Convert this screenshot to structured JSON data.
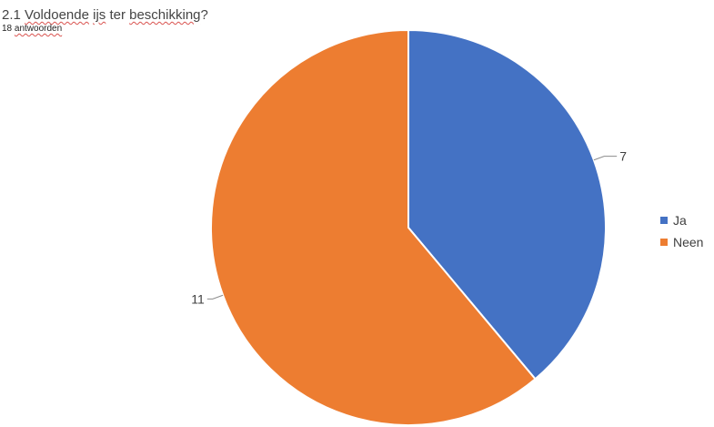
{
  "header": {
    "title_prefix": "2.1 ",
    "title_word1": "Voldoende",
    "title_space1": " ",
    "title_word2": "ijs",
    "title_middle": " ter ",
    "title_word3": "beschikking",
    "title_suffix": "?",
    "subtitle_count": "18 ",
    "subtitle_word": "antwoorden"
  },
  "chart_data": {
    "type": "pie",
    "title": "2.1 Voldoende ijs ter beschikking?",
    "subtitle": "18 antwoorden",
    "categories": [
      "Ja",
      "Neen"
    ],
    "values": [
      7,
      11
    ],
    "colors": [
      "#4472C4",
      "#ED7D31"
    ],
    "data_labels": [
      "7",
      "11"
    ],
    "start": "top",
    "direction": "clockwise",
    "legend_position": "right"
  }
}
